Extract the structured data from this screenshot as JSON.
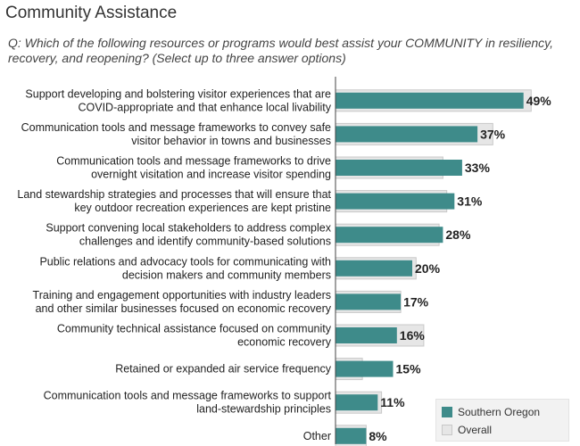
{
  "page": {
    "title": "Community Assistance",
    "question": "Q: Which of the following resources or programs would best assist your COMMUNITY in resiliency, recovery, and reopening? (Select up to three answer options)"
  },
  "legend": {
    "items": [
      {
        "label": "Southern Oregon",
        "color": "#3e8b8a"
      },
      {
        "label": "Overall",
        "color": "#e6e6e6"
      }
    ]
  },
  "chart_data": {
    "type": "bar",
    "orientation": "horizontal",
    "categories": [
      [
        "Support developing and bolstering visitor experiences that are",
        "COVID-appropriate and that enhance local livability"
      ],
      [
        "Communication tools and message frameworks to convey safe",
        "visitor behavior in towns and businesses"
      ],
      [
        "Communication tools and message frameworks to drive",
        "overnight visitation and increase visitor spending"
      ],
      [
        "Land stewardship strategies and processes that will ensure that",
        "key outdoor recreation experiences are kept pristine"
      ],
      [
        "Support convening local stakeholders to address complex",
        "challenges and identify community-based solutions"
      ],
      [
        "Public relations and advocacy tools for communicating with",
        "decision makers and community members"
      ],
      [
        "Training and engagement opportunities with industry leaders",
        "and other similar businesses focused on economic recovery"
      ],
      [
        "Community technical assistance focused on community",
        "economic recovery"
      ],
      [
        "Retained or expanded air service frequency"
      ],
      [
        "Communication tools and message frameworks to support",
        "land-stewardship principles"
      ],
      [
        "Other"
      ]
    ],
    "series": [
      {
        "name": "Southern Oregon",
        "values": [
          49,
          37,
          33,
          31,
          28,
          20,
          17,
          16,
          15,
          11,
          8
        ],
        "color": "#3e8b8a"
      },
      {
        "name": "Overall",
        "values": [
          51,
          41,
          28,
          29,
          27,
          21,
          17,
          23,
          7,
          12,
          8
        ],
        "color": "#e6e6e6"
      }
    ],
    "data_labels": [
      "49%",
      "37%",
      "33%",
      "31%",
      "28%",
      "20%",
      "17%",
      "16%",
      "15%",
      "11%",
      "8%"
    ],
    "xlim": [
      0,
      60
    ],
    "grid": false,
    "legend_position": "bottom-right"
  }
}
